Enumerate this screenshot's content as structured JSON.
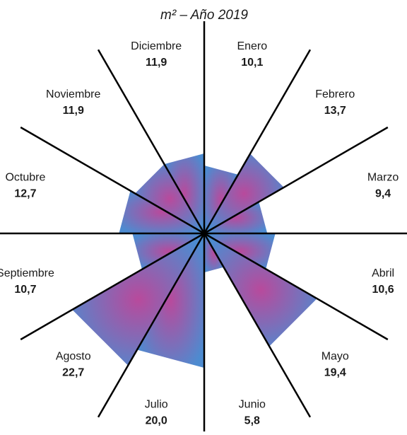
{
  "chart_data": {
    "type": "polar",
    "title": "m² – Año 2019",
    "categories": [
      "Enero",
      "Febrero",
      "Marzo",
      "Abril",
      "Mayo",
      "Junio",
      "Julio",
      "Agosto",
      "Septiembre",
      "Octubre",
      "Noviembre",
      "Diciembre"
    ],
    "values": [
      10.1,
      13.7,
      9.4,
      10.6,
      19.4,
      5.8,
      20.0,
      22.7,
      10.7,
      12.7,
      11.9,
      11.9
    ],
    "value_labels": [
      "10,1",
      "13,7",
      "9,4",
      "10,6",
      "19,4",
      "5,8",
      "20,0",
      "22,7",
      "10,7",
      "12,7",
      "11,9",
      "11,9"
    ]
  }
}
